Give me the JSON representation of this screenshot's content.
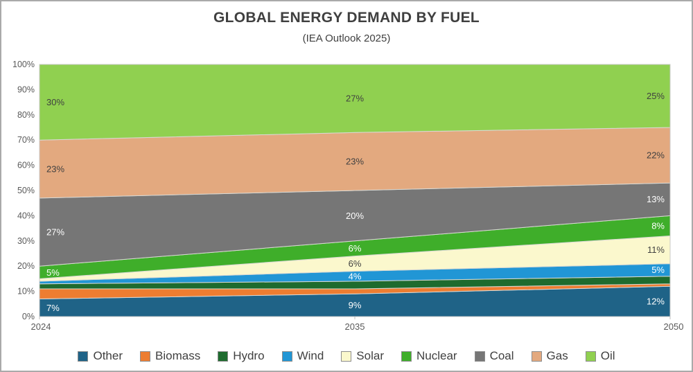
{
  "chart_data": {
    "type": "area",
    "variant": "stacked-100-percent",
    "title": "GLOBAL ENERGY DEMAND BY FUEL",
    "subtitle": "(IEA Outlook 2025)",
    "categories": [
      "2024",
      "2035",
      "2050"
    ],
    "y_axis": {
      "min": 0,
      "max": 100,
      "step": 10,
      "ticks": [
        "0%",
        "10%",
        "20%",
        "30%",
        "40%",
        "50%",
        "60%",
        "70%",
        "80%",
        "90%",
        "100%"
      ]
    },
    "legend_position": "bottom",
    "grid": false,
    "series": [
      {
        "name": "Other",
        "color": "#1f6387",
        "values": [
          7,
          9,
          12
        ],
        "labels": [
          "7%",
          "9%",
          "12%"
        ],
        "label_color": "#ffffff"
      },
      {
        "name": "Biomass",
        "color": "#ed7d31",
        "values": [
          4,
          2,
          1
        ],
        "labels": [
          null,
          null,
          null
        ],
        "label_color": "#ffffff"
      },
      {
        "name": "Hydro",
        "color": "#1e6b2e",
        "values": [
          2,
          3,
          3
        ],
        "labels": [
          null,
          null,
          null
        ],
        "label_color": "#ffffff"
      },
      {
        "name": "Wind",
        "color": "#2196d5",
        "values": [
          1,
          4,
          5
        ],
        "labels": [
          null,
          "4%",
          "5%"
        ],
        "label_color": "#ffffff"
      },
      {
        "name": "Solar",
        "color": "#fbf8cd",
        "values": [
          1,
          6,
          11
        ],
        "labels": [
          null,
          "6%",
          "11%"
        ],
        "label_color": "#404040"
      },
      {
        "name": "Nuclear",
        "color": "#3fae2a",
        "values": [
          5,
          6,
          8
        ],
        "labels": [
          "5%",
          "6%",
          "8%"
        ],
        "label_color": "#ffffff"
      },
      {
        "name": "Coal",
        "color": "#767676",
        "values": [
          27,
          20,
          13
        ],
        "labels": [
          "27%",
          "20%",
          "13%"
        ],
        "label_color": "#ffffff"
      },
      {
        "name": "Gas",
        "color": "#e3a97f",
        "values": [
          23,
          23,
          22
        ],
        "labels": [
          "23%",
          "23%",
          "22%"
        ],
        "label_color": "#404040"
      },
      {
        "name": "Oil",
        "color": "#90d050",
        "values": [
          30,
          27,
          25
        ],
        "labels": [
          "30%",
          "27%",
          "25%"
        ],
        "label_color": "#404040"
      }
    ]
  }
}
